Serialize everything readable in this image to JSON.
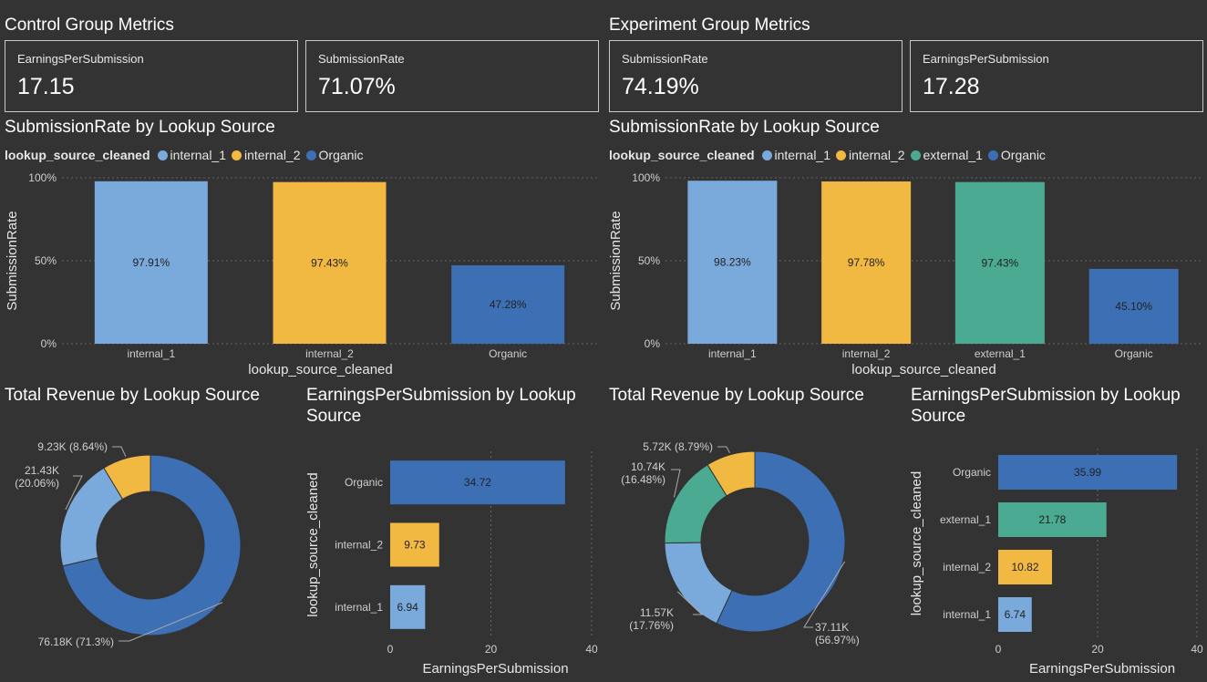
{
  "colors": {
    "internal_1": "#7aaadc",
    "internal_2": "#f2b942",
    "external_1": "#4aaa92",
    "Organic": "#3d6fb5",
    "bg": "#333333",
    "grid": "#666666",
    "axis_text": "#cfcfcf"
  },
  "control": {
    "section_title": "Control Group Metrics",
    "cards": [
      {
        "label": "EarningsPerSubmission",
        "value": "17.15"
      },
      {
        "label": "SubmissionRate",
        "value": "71.07%"
      }
    ],
    "rate_chart": {
      "title": "SubmissionRate by Lookup Source",
      "legend_title": "lookup_source_cleaned",
      "legend": [
        "internal_1",
        "internal_2",
        "Organic"
      ]
    },
    "revenue_chart": {
      "title": "Total Revenue by Lookup Source"
    },
    "eps_chart": {
      "title": "EarningsPerSubmission by Lookup Source"
    }
  },
  "experiment": {
    "section_title": "Experiment Group Metrics",
    "cards": [
      {
        "label": "SubmissionRate",
        "value": "74.19%"
      },
      {
        "label": "EarningsPerSubmission",
        "value": "17.28"
      }
    ],
    "rate_chart": {
      "title": "SubmissionRate by Lookup Source",
      "legend_title": "lookup_source_cleaned",
      "legend": [
        "internal_1",
        "internal_2",
        "external_1",
        "Organic"
      ]
    },
    "revenue_chart": {
      "title": "Total Revenue by Lookup Source"
    },
    "eps_chart": {
      "title": "EarningsPerSubmission by Lookup Source"
    }
  },
  "chart_data": [
    {
      "type": "bar",
      "title": "SubmissionRate by Lookup Source",
      "xlabel": "lookup_source_cleaned",
      "ylabel": "SubmissionRate",
      "categories": [
        "internal_1",
        "internal_2",
        "Organic"
      ],
      "values": [
        97.91,
        97.43,
        47.28
      ],
      "data_labels": [
        "97.91%",
        "97.43%",
        "47.28%"
      ],
      "ylim": [
        0,
        100
      ],
      "yticks": [
        "0%",
        "50%",
        "100%"
      ],
      "grid": true,
      "legend": "top-left"
    },
    {
      "type": "pie",
      "title": "Total Revenue by Lookup Source",
      "categories": [
        "Organic",
        "internal_1",
        "internal_2"
      ],
      "values": [
        76.18,
        21.43,
        9.23
      ],
      "data_labels": [
        "76.18K (71.3%)",
        "21.43K\n(20.06%)",
        "9.23K (8.64%)"
      ]
    },
    {
      "type": "bar",
      "orientation": "horizontal",
      "title": "EarningsPerSubmission by Lookup Source",
      "xlabel": "EarningsPerSubmission",
      "ylabel": "lookup_source_cleaned",
      "categories": [
        "Organic",
        "internal_2",
        "internal_1"
      ],
      "values": [
        34.72,
        9.73,
        6.94
      ],
      "data_labels": [
        "34.72",
        "9.73",
        "6.94"
      ],
      "xlim": [
        0,
        40
      ],
      "xticks": [
        "0",
        "20",
        "40"
      ],
      "grid": true
    },
    {
      "type": "bar",
      "title": "SubmissionRate by Lookup Source",
      "xlabel": "lookup_source_cleaned",
      "ylabel": "SubmissionRate",
      "categories": [
        "internal_1",
        "internal_2",
        "external_1",
        "Organic"
      ],
      "values": [
        98.23,
        97.78,
        97.43,
        45.1
      ],
      "data_labels": [
        "98.23%",
        "97.78%",
        "97.43%",
        "45.10%"
      ],
      "ylim": [
        0,
        100
      ],
      "yticks": [
        "0%",
        "50%",
        "100%"
      ],
      "grid": true,
      "legend": "top-left"
    },
    {
      "type": "pie",
      "title": "Total Revenue by Lookup Source",
      "categories": [
        "Organic",
        "internal_1",
        "external_1",
        "internal_2"
      ],
      "values": [
        37.11,
        11.57,
        10.74,
        5.72
      ],
      "data_labels": [
        "37.11K\n(56.97%)",
        "11.57K\n(17.76%)",
        "10.74K\n(16.48%)",
        "5.72K (8.79%)"
      ]
    },
    {
      "type": "bar",
      "orientation": "horizontal",
      "title": "EarningsPerSubmission by Lookup Source",
      "xlabel": "EarningsPerSubmission",
      "ylabel": "lookup_source_cleaned",
      "categories": [
        "Organic",
        "external_1",
        "internal_2",
        "internal_1"
      ],
      "values": [
        35.99,
        21.78,
        10.82,
        6.74
      ],
      "data_labels": [
        "35.99",
        "21.78",
        "10.82",
        "6.74"
      ],
      "xlim": [
        0,
        40
      ],
      "xticks": [
        "0",
        "20",
        "40"
      ],
      "grid": true
    }
  ]
}
